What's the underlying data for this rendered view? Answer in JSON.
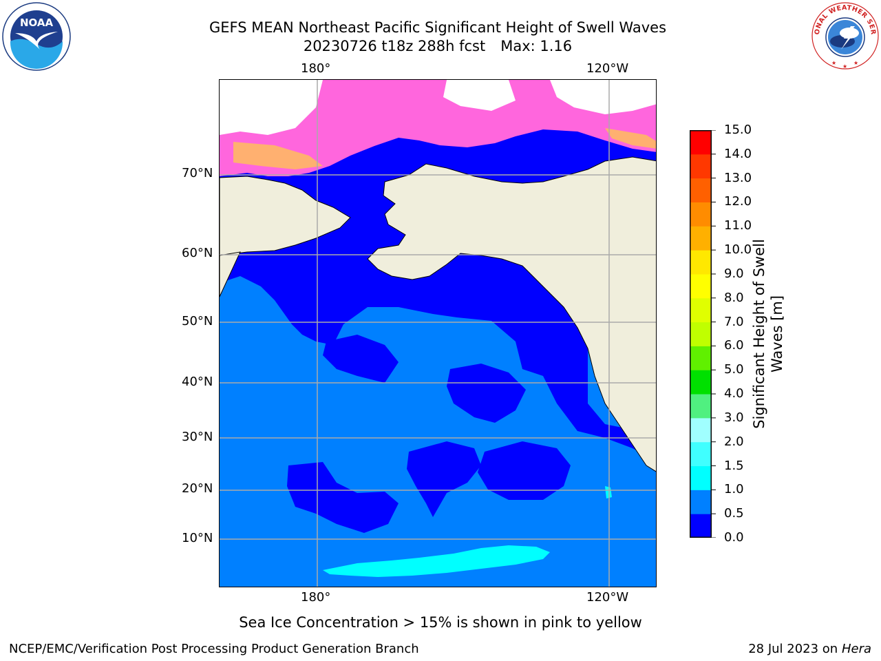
{
  "title": {
    "line1": "GEFS MEAN Northeast Pacific Significant Height of Swell Waves",
    "line2_left": "20230726 t18z 288h fcst",
    "line2_right": "Max: 1.16"
  },
  "logos": {
    "noaa_text": "NOAA",
    "nws_text": "NATIONAL WEATHER SERVICE"
  },
  "axes": {
    "top_ticks": [
      "180°",
      "120°W"
    ],
    "bottom_ticks": [
      "180°",
      "120°W"
    ],
    "lat_ticks": [
      "70°N",
      "60°N",
      "50°N",
      "40°N",
      "30°N",
      "20°N",
      "10°N"
    ]
  },
  "colorbar": {
    "title_line1": "Significant Height of Swell",
    "title_line2": "Waves [m]",
    "levels": [
      "0.0",
      "0.5",
      "1.0",
      "1.5",
      "2.0",
      "3.0",
      "4.0",
      "5.0",
      "6.0",
      "7.0",
      "8.0",
      "9.0",
      "10.0",
      "11.0",
      "12.0",
      "13.0",
      "14.0",
      "15.0"
    ],
    "colors": [
      "#0000ff",
      "#0080ff",
      "#00ffff",
      "#40ffff",
      "#a0ffff",
      "#50f080",
      "#00e000",
      "#60f000",
      "#c0ff00",
      "#e0ff00",
      "#ffff00",
      "#ffe800",
      "#ffb000",
      "#ff8c00",
      "#ff6000",
      "#ff3800",
      "#ff0000"
    ]
  },
  "colors": {
    "ocean_low": "#0000ff",
    "ocean_mid": "#0080ff",
    "ocean_cyan": "#00ffff",
    "land": "#f0eedc",
    "ice_pink": "#ff66dd",
    "ice_orange": "#ffb070",
    "grid": "#aaaaaa"
  },
  "note": "Sea Ice Concentration > 15% is shown in pink to yellow",
  "footer": {
    "left": "NCEP/EMC/Verification Post Processing Product Generation Branch",
    "right_date": "28 Jul 2023 on ",
    "right_host": "Hera"
  }
}
